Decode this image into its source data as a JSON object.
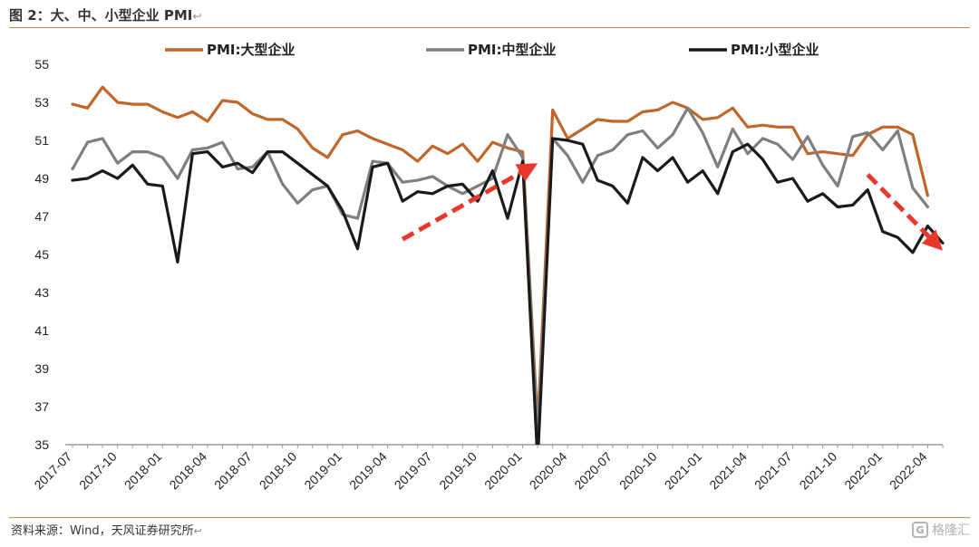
{
  "header": {
    "title": "图 2：大、中、小型企业 PMI",
    "return_mark": "↩"
  },
  "footer": {
    "source": "资料来源：Wind，天风证券研究所",
    "return_mark": "↩"
  },
  "watermark": {
    "text": "格隆汇",
    "logo_glyph": "G"
  },
  "chart_data": {
    "type": "line",
    "title": "",
    "xlabel": "",
    "ylabel": "",
    "ylim": [
      35,
      55
    ],
    "yticks": [
      35,
      37,
      39,
      41,
      43,
      45,
      47,
      49,
      51,
      53,
      55
    ],
    "grid": false,
    "legend_position": "top",
    "xtick_labels": [
      "2017-07",
      "2017-10",
      "2018-01",
      "2018-04",
      "2018-07",
      "2018-10",
      "2019-01",
      "2019-04",
      "2019-07",
      "2019-10",
      "2020-01",
      "2020-04",
      "2020-07",
      "2020-10",
      "2021-01",
      "2021-04",
      "2021-07",
      "2021-10",
      "2022-01",
      "2022-04"
    ],
    "x": [
      "2017-07",
      "2017-08",
      "2017-09",
      "2017-10",
      "2017-11",
      "2017-12",
      "2018-01",
      "2018-02",
      "2018-03",
      "2018-04",
      "2018-05",
      "2018-06",
      "2018-07",
      "2018-08",
      "2018-09",
      "2018-10",
      "2018-11",
      "2018-12",
      "2019-01",
      "2019-02",
      "2019-03",
      "2019-04",
      "2019-05",
      "2019-06",
      "2019-07",
      "2019-08",
      "2019-09",
      "2019-10",
      "2019-11",
      "2019-12",
      "2020-01",
      "2020-02",
      "2020-03",
      "2020-04",
      "2020-05",
      "2020-06",
      "2020-07",
      "2020-08",
      "2020-09",
      "2020-10",
      "2020-11",
      "2020-12",
      "2021-01",
      "2021-02",
      "2021-03",
      "2021-04",
      "2021-05",
      "2021-06",
      "2021-07",
      "2021-08",
      "2021-09",
      "2021-10",
      "2021-11",
      "2021-12",
      "2022-01",
      "2022-02",
      "2022-03",
      "2022-04",
      "2022-05"
    ],
    "series": [
      {
        "name": "PMI:大型企业",
        "color": "#c0662a",
        "values": [
          52.9,
          52.7,
          53.8,
          53.0,
          52.9,
          52.9,
          52.5,
          52.2,
          52.5,
          52.0,
          53.1,
          53.0,
          52.4,
          52.1,
          52.1,
          51.6,
          50.6,
          50.1,
          51.3,
          51.5,
          51.1,
          50.8,
          50.5,
          49.9,
          50.7,
          50.3,
          50.8,
          49.9,
          50.9,
          50.6,
          50.4,
          36.0,
          52.6,
          51.1,
          51.6,
          52.1,
          52.0,
          52.0,
          52.5,
          52.6,
          53.0,
          52.7,
          52.1,
          52.2,
          52.7,
          51.7,
          51.8,
          51.7,
          51.7,
          50.3,
          50.4,
          50.3,
          50.2,
          51.3,
          51.7,
          51.7,
          51.3,
          48.1,
          null
        ]
      },
      {
        "name": "PMI:中型企业",
        "color": "#7f7f7f",
        "values": [
          49.5,
          50.9,
          51.1,
          49.8,
          50.4,
          50.4,
          50.1,
          49.0,
          50.5,
          50.6,
          50.9,
          49.5,
          49.6,
          50.4,
          48.7,
          47.7,
          48.4,
          48.6,
          47.1,
          46.9,
          49.9,
          49.8,
          48.8,
          48.9,
          49.1,
          48.6,
          48.2,
          48.6,
          49.0,
          51.3,
          50.1,
          35.5,
          51.1,
          50.2,
          48.8,
          50.2,
          50.5,
          51.3,
          51.5,
          50.6,
          51.3,
          52.7,
          51.4,
          49.6,
          51.6,
          50.3,
          51.1,
          50.8,
          50.0,
          51.2,
          49.7,
          48.6,
          51.2,
          51.4,
          50.5,
          51.5,
          48.5,
          47.5,
          null
        ]
      },
      {
        "name": "PMI:小型企业",
        "color": "#1a1a1a",
        "values": [
          48.9,
          49.0,
          49.4,
          49.0,
          49.7,
          48.7,
          48.6,
          44.6,
          50.3,
          50.4,
          49.6,
          49.8,
          49.3,
          50.4,
          50.4,
          49.8,
          49.2,
          48.6,
          47.3,
          45.3,
          49.6,
          49.8,
          47.8,
          48.3,
          48.2,
          48.6,
          48.7,
          47.8,
          49.4,
          46.9,
          49.9,
          34.1,
          51.1,
          51.0,
          50.8,
          48.9,
          48.6,
          47.7,
          50.1,
          49.4,
          50.1,
          48.8,
          49.4,
          48.2,
          50.4,
          50.8,
          50.0,
          48.8,
          49.0,
          47.8,
          48.2,
          47.5,
          47.6,
          48.4,
          46.2,
          45.9,
          45.1,
          46.5,
          45.6
        ]
      }
    ],
    "annotations": [
      {
        "type": "arrow",
        "description": "upward dashed arrow",
        "from": [
          "2019-05",
          45.8
        ],
        "to": [
          "2020-02",
          49.8
        ],
        "color": "#e8382b"
      },
      {
        "type": "arrow",
        "description": "downward dashed arrow",
        "from": [
          "2021-12",
          49.2
        ],
        "to": [
          "2022-05",
          45.2
        ],
        "color": "#e8382b"
      }
    ]
  }
}
